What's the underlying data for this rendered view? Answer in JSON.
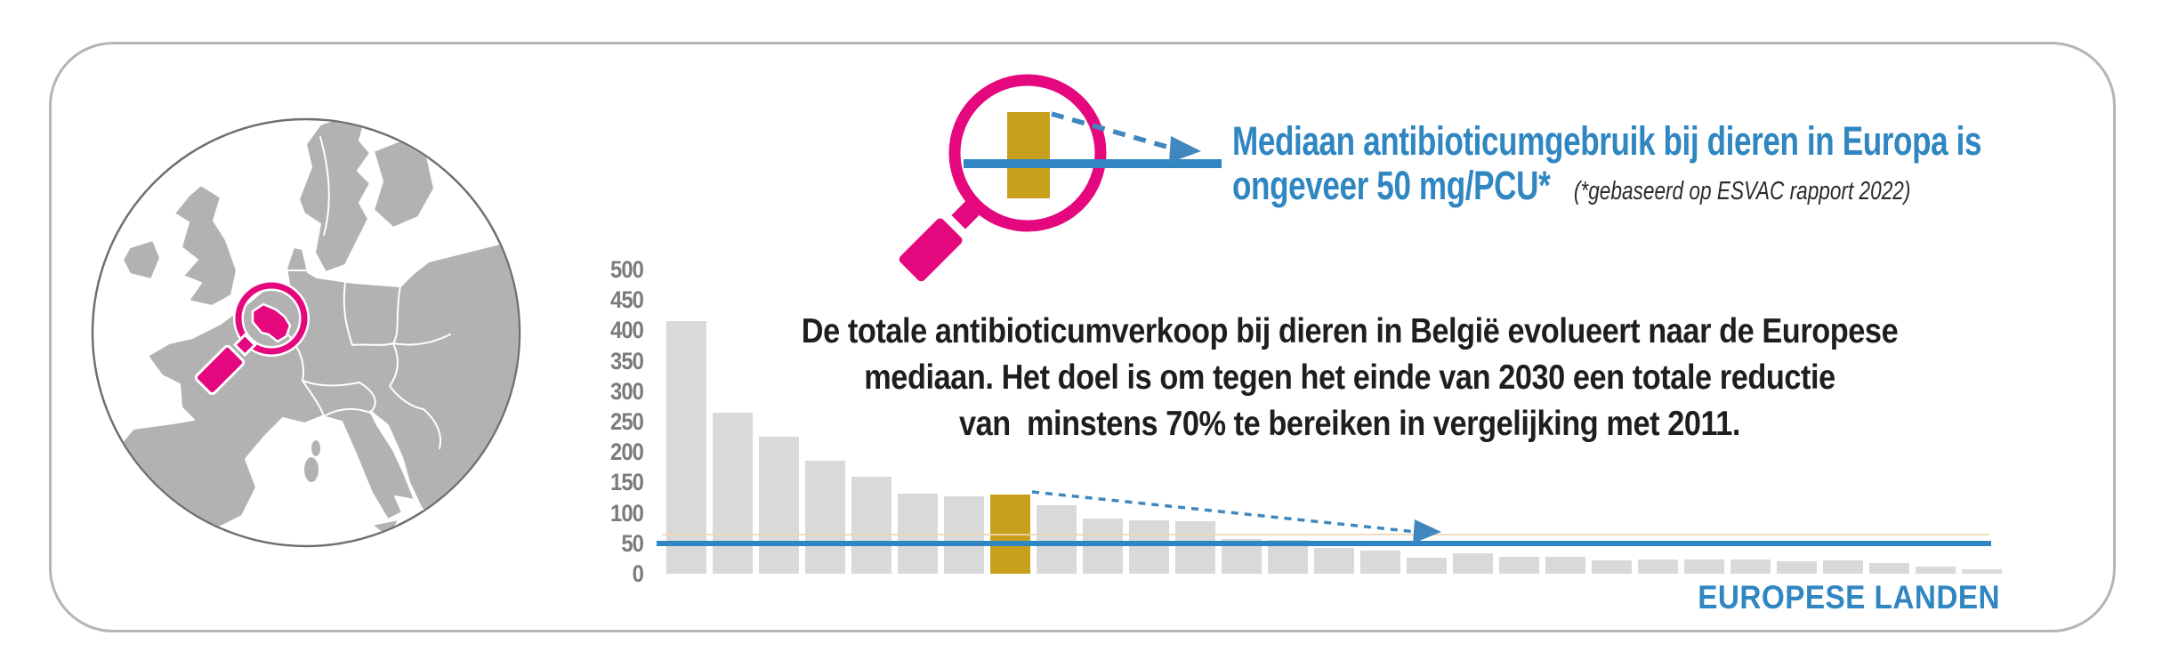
{
  "callout": {
    "heading_line1": "Mediaan antibioticumgebruik bij dieren in Europa is",
    "heading_line2": "ongeveer 50 mg/PCU*",
    "footnote": "(*gebaseerd op ESVAC rapport 2022)"
  },
  "annotation": {
    "line1": "De totale antibioticumverkoop bij dieren in België evolueert naar de Europese",
    "line2": "mediaan. Het doel is om tegen het einde van 2030 een totale reductie",
    "line3": "van  minstens 70% te bereiken in vergelijking met 2011."
  },
  "chart_data": {
    "type": "bar",
    "title": "",
    "xlabel": "EUROPESE LANDEN",
    "ylabel": "",
    "ylim": [
      0,
      500
    ],
    "y_ticks": [
      500,
      450,
      400,
      350,
      300,
      250,
      200,
      150,
      100,
      50,
      0
    ],
    "grid": false,
    "legend": "none",
    "values": [
      415,
      265,
      225,
      185,
      160,
      132,
      127,
      130,
      112,
      90,
      88,
      86,
      57,
      56,
      42,
      38,
      27,
      33,
      28,
      28,
      22,
      24,
      23,
      24,
      21,
      22,
      18,
      12,
      8
    ],
    "highlight_index": 7,
    "median_line_value": 50
  },
  "colors": {
    "blue": "#2F86C1",
    "magenta": "#E5077E",
    "gold": "#C7A11B",
    "bar_gray": "#D9D9D9",
    "axis_gray": "#7B7B7B",
    "text_dark": "#1E1E1E",
    "map_land": "#B2B2B2",
    "card_border": "#B5B5B5"
  }
}
